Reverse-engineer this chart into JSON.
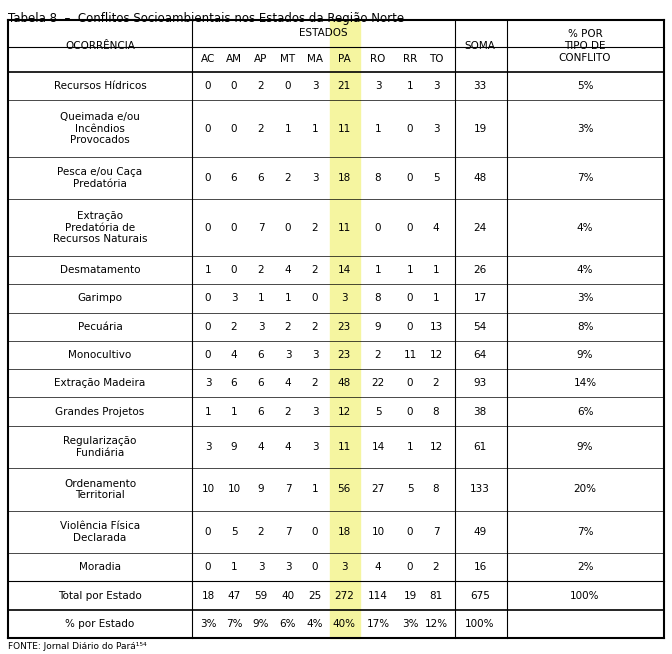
{
  "title": "Tabela 8  –  Conflitos Socioambientais nos Estados da Região Norte",
  "footnote": "FONTE: Jornal Diário do Pará¹⁵⁴",
  "states": [
    "AC",
    "AM",
    "AP",
    "MT",
    "MA",
    "PA",
    "RO",
    "RR",
    "TO"
  ],
  "pa_highlight_color": "#f5f5a0",
  "rows": [
    {
      "label": "Recursos Hídricos",
      "values": [
        0,
        0,
        2,
        0,
        3,
        21,
        3,
        1,
        3
      ],
      "soma": 33,
      "pct": "5%"
    },
    {
      "label": "Queimada e/ou\nIncêndios\nProvocados",
      "values": [
        0,
        0,
        2,
        1,
        1,
        11,
        1,
        0,
        3
      ],
      "soma": 19,
      "pct": "3%"
    },
    {
      "label": "Pesca e/ou Caça\nPredatória",
      "values": [
        0,
        6,
        6,
        2,
        3,
        18,
        8,
        0,
        5
      ],
      "soma": 48,
      "pct": "7%"
    },
    {
      "label": "Extração\nPredatória de\nRecursos Naturais",
      "values": [
        0,
        0,
        7,
        0,
        2,
        11,
        0,
        0,
        4
      ],
      "soma": 24,
      "pct": "4%"
    },
    {
      "label": "Desmatamento",
      "values": [
        1,
        0,
        2,
        4,
        2,
        14,
        1,
        1,
        1
      ],
      "soma": 26,
      "pct": "4%"
    },
    {
      "label": "Garimpo",
      "values": [
        0,
        3,
        1,
        1,
        0,
        3,
        8,
        0,
        1
      ],
      "soma": 17,
      "pct": "3%"
    },
    {
      "label": "Pecuária",
      "values": [
        0,
        2,
        3,
        2,
        2,
        23,
        9,
        0,
        13
      ],
      "soma": 54,
      "pct": "8%"
    },
    {
      "label": "Monocultivo",
      "values": [
        0,
        4,
        6,
        3,
        3,
        23,
        2,
        11,
        12
      ],
      "soma": 64,
      "pct": "9%"
    },
    {
      "label": "Extração Madeira",
      "values": [
        3,
        6,
        6,
        4,
        2,
        48,
        22,
        0,
        2
      ],
      "soma": 93,
      "pct": "14%"
    },
    {
      "label": "Grandes Projetos",
      "values": [
        1,
        1,
        6,
        2,
        3,
        12,
        5,
        0,
        8
      ],
      "soma": 38,
      "pct": "6%"
    },
    {
      "label": "Regularização\nFundiária",
      "values": [
        3,
        9,
        4,
        4,
        3,
        11,
        14,
        1,
        12
      ],
      "soma": 61,
      "pct": "9%"
    },
    {
      "label": "Ordenamento\nTerritorial",
      "values": [
        10,
        10,
        9,
        7,
        1,
        56,
        27,
        5,
        8
      ],
      "soma": 133,
      "pct": "20%"
    },
    {
      "label": "Violência Física\nDeclarada",
      "values": [
        0,
        5,
        2,
        7,
        0,
        18,
        10,
        0,
        7
      ],
      "soma": 49,
      "pct": "7%"
    },
    {
      "label": "Moradia",
      "values": [
        0,
        1,
        3,
        3,
        0,
        3,
        4,
        0,
        2
      ],
      "soma": 16,
      "pct": "2%"
    }
  ],
  "total_row": {
    "label": "Total por Estado",
    "values": [
      18,
      47,
      59,
      40,
      25,
      272,
      114,
      19,
      81
    ],
    "soma": 675,
    "pct": "100%"
  },
  "pct_row": {
    "label": "% por Estado",
    "values": [
      "3%",
      "7%",
      "9%",
      "6%",
      "4%",
      "40%",
      "17%",
      "3%",
      "12%"
    ],
    "soma": "100%"
  },
  "bg_color": "#ffffff",
  "line_color": "#000000",
  "font_size": 7.5,
  "title_font_size": 8.5
}
